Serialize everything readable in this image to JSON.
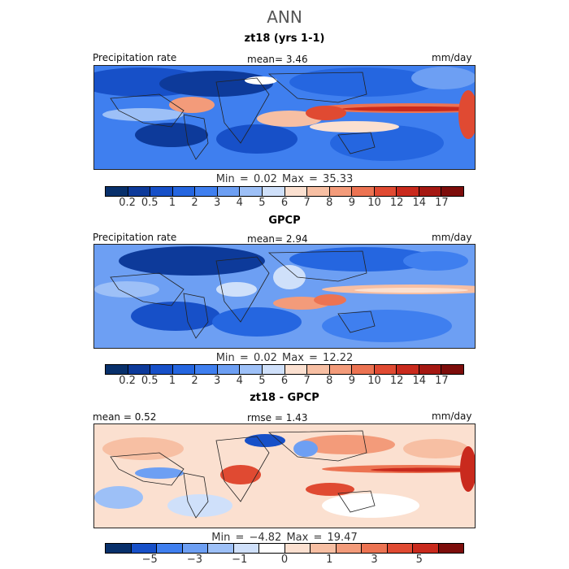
{
  "title": "ANN",
  "panels": [
    {
      "heading": "zt18 (yrs 1-1)",
      "left_label": "Precipitation rate",
      "center_label": "mean=    3.46",
      "units": "mm/day",
      "minmax": "Min =    0.02 Max =  35.33",
      "ticks": [
        "0.2",
        "0.5",
        "1",
        "2",
        "3",
        "4",
        "5",
        "6",
        "7",
        "8",
        "9",
        "10",
        "12",
        "14",
        "17"
      ]
    },
    {
      "heading": "GPCP",
      "left_label": "Precipitation rate",
      "center_label": "mean=    2.94",
      "units": "mm/day",
      "minmax": "Min =    0.02 Max =  12.22",
      "ticks": [
        "0.2",
        "0.5",
        "1",
        "2",
        "3",
        "4",
        "5",
        "6",
        "7",
        "8",
        "9",
        "10",
        "12",
        "14",
        "17"
      ]
    },
    {
      "heading": "zt18 - GPCP",
      "left_label": "mean =    0.52",
      "center_label": "rmse =    1.43",
      "units": "mm/day",
      "minmax": "Min =  −4.82 Max =  19.47",
      "ticks": [
        "−5",
        "−3",
        "−1",
        "0",
        "1",
        "3",
        "5"
      ]
    }
  ],
  "colors": {
    "precip_palette": [
      "#08306b",
      "#0d3a9a",
      "#1750c8",
      "#2566e0",
      "#3f7fef",
      "#6d9ff3",
      "#9dc0f7",
      "#cfe0fa",
      "#fbe0d0",
      "#f7bfa3",
      "#f39b7a",
      "#ec7352",
      "#e04a32",
      "#c92a1d",
      "#a51812",
      "#7d0d0b"
    ],
    "diff_palette": [
      "#08306b",
      "#1750c8",
      "#3f7fef",
      "#6d9ff3",
      "#9dc0f7",
      "#cfe0fa",
      "#ffffff",
      "#fbe0d0",
      "#f7bfa3",
      "#f39b7a",
      "#ec7352",
      "#e04a32",
      "#c92a1d",
      "#7d0d0b"
    ]
  }
}
